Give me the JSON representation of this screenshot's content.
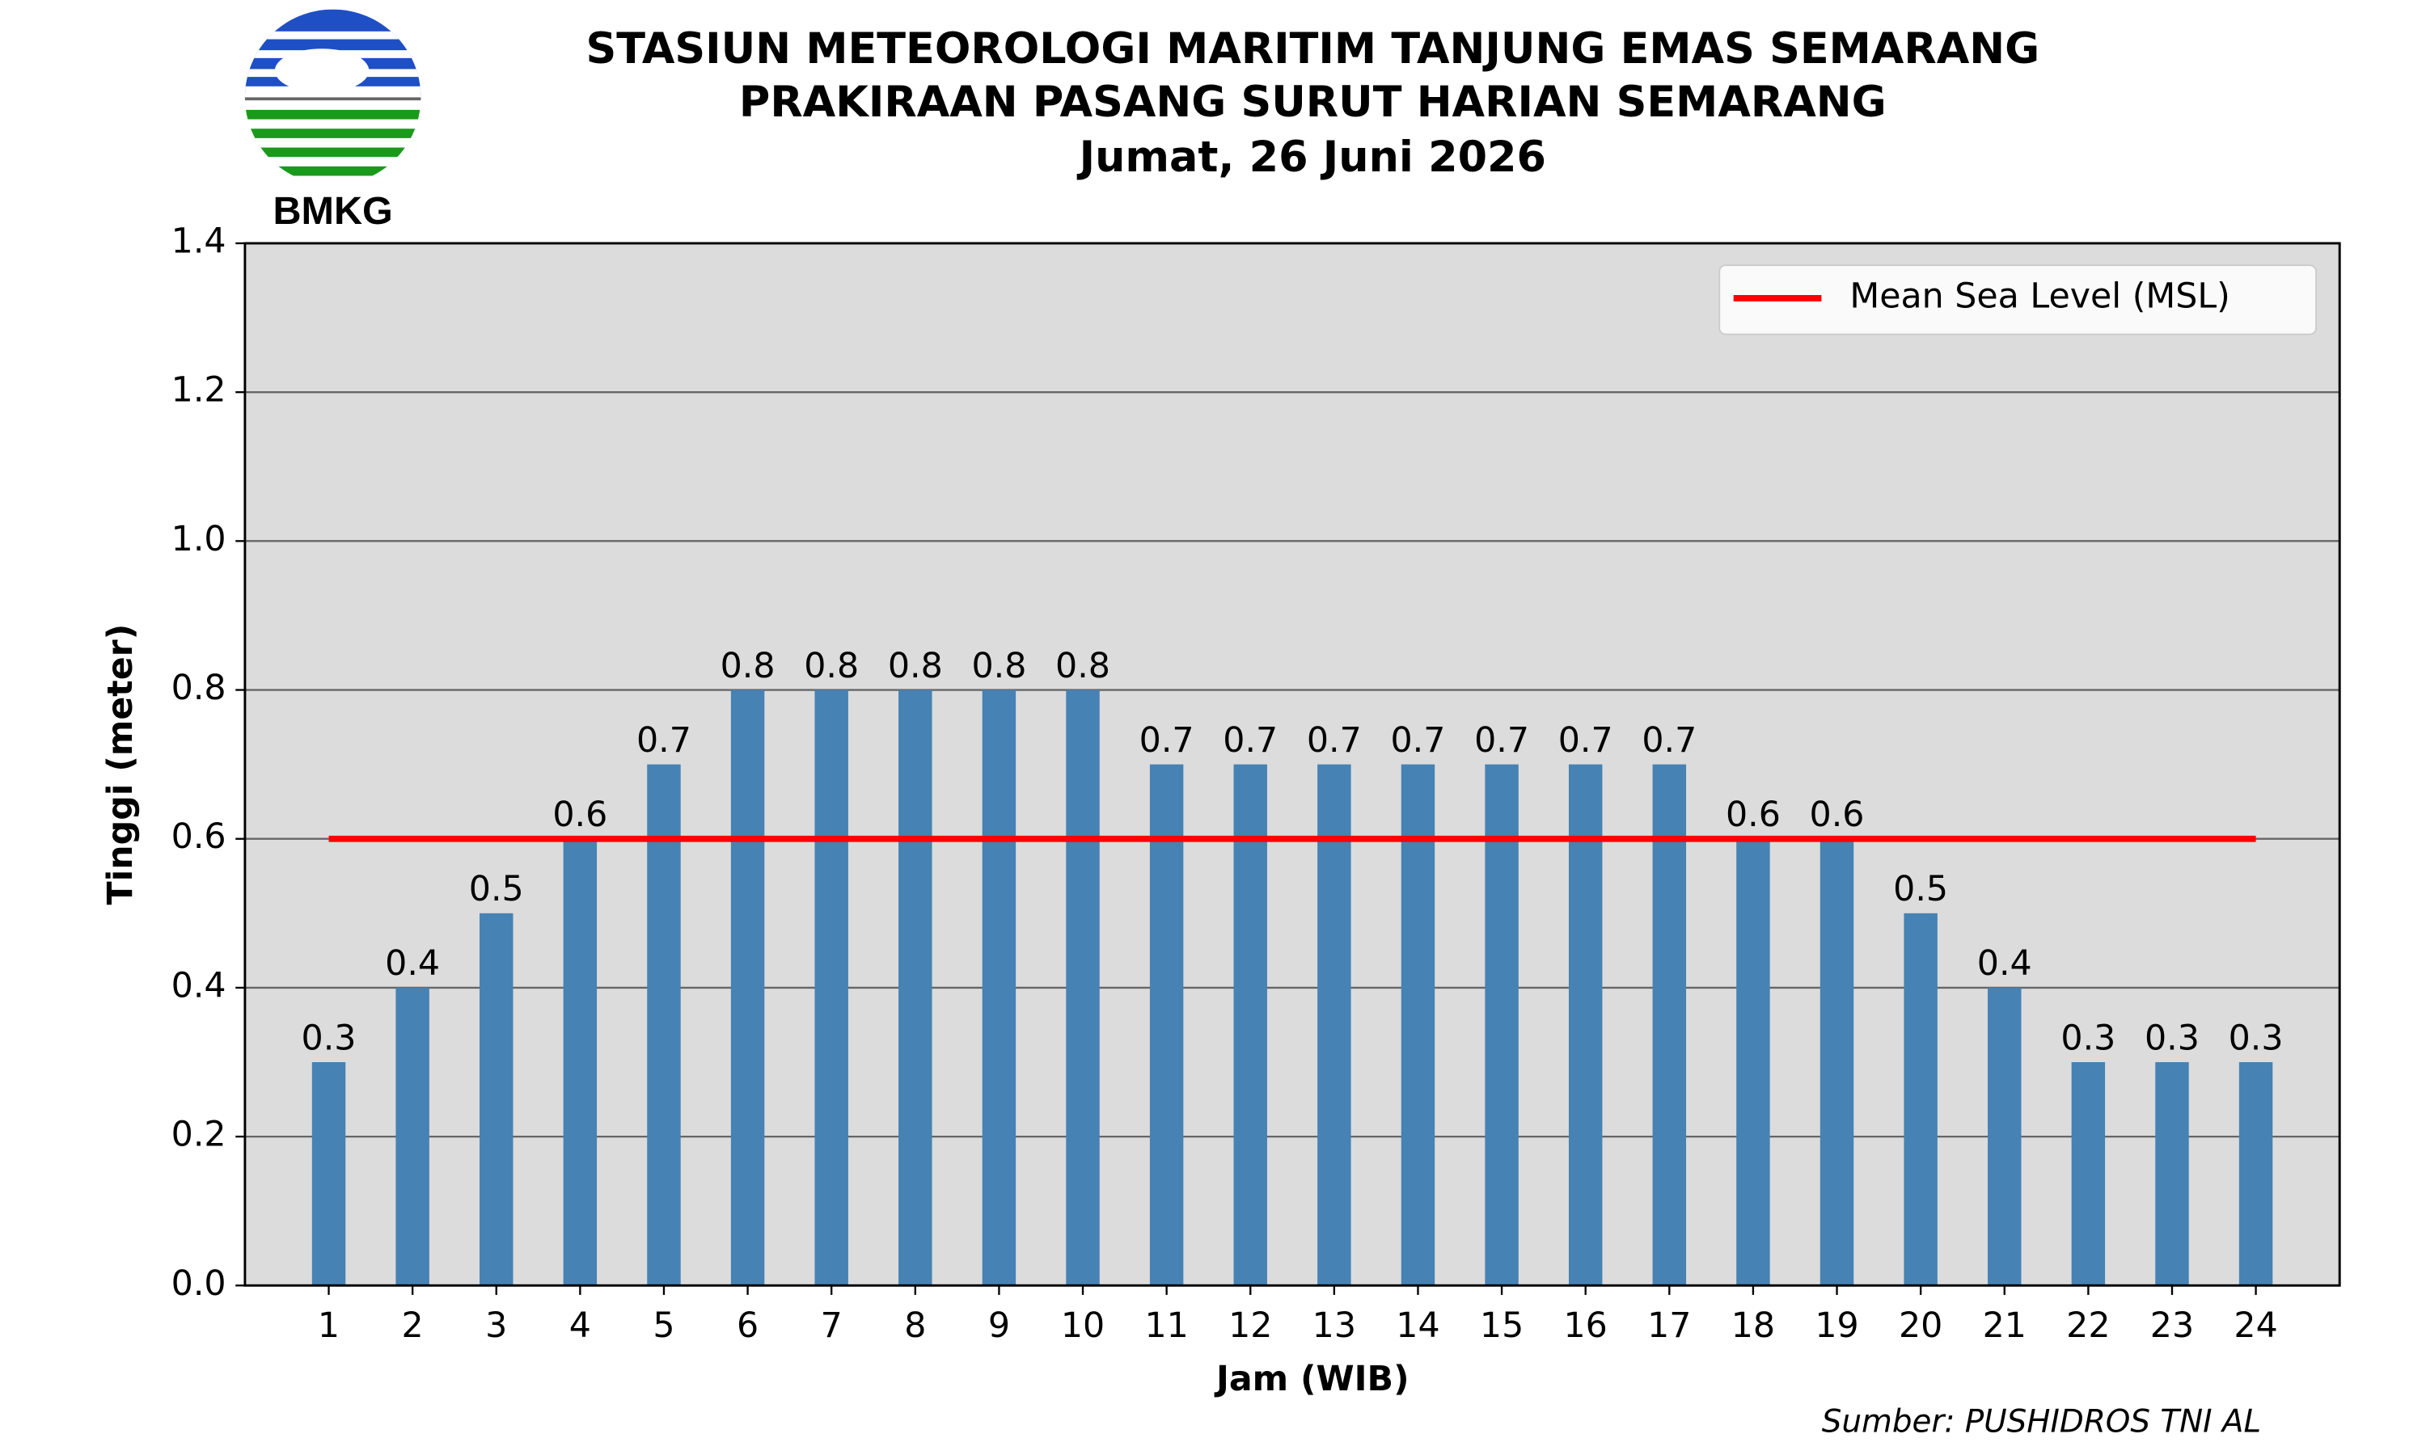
{
  "chart_data": {
    "type": "bar",
    "title": [
      "STASIUN METEOROLOGI MARITIM TANJUNG EMAS SEMARANG",
      "PRAKIRAAN PASANG SURUT HARIAN SEMARANG",
      "Jumat, 26 Juni 2026"
    ],
    "logo_text": "BMKG",
    "x_label": "Jam (WIB)",
    "y_label": "Tinggi (meter)",
    "source": "Sumber: PUSHIDROS TNI AL",
    "categories": [
      "1",
      "2",
      "3",
      "4",
      "5",
      "6",
      "7",
      "8",
      "9",
      "10",
      "11",
      "12",
      "13",
      "14",
      "15",
      "16",
      "17",
      "18",
      "19",
      "20",
      "21",
      "22",
      "23",
      "24"
    ],
    "values": [
      0.3,
      0.4,
      0.5,
      0.6,
      0.7,
      0.8,
      0.8,
      0.8,
      0.8,
      0.8,
      0.7,
      0.7,
      0.7,
      0.7,
      0.7,
      0.7,
      0.7,
      0.6,
      0.6,
      0.5,
      0.4,
      0.3,
      0.3,
      0.3
    ],
    "color": "#4682b4",
    "reference_line": {
      "name": "Mean Sea Level (MSL)",
      "value": 0.6,
      "color": "#ff0000"
    },
    "legend": "upper right",
    "ylim": [
      0,
      1.4
    ],
    "yticks": [
      {
        "value": 0,
        "label": "0.0"
      },
      0.2,
      0.4,
      0.6,
      0.8,
      {
        "value": 1,
        "label": "1.0"
      },
      1.2,
      1.4
    ],
    "grid": true
  }
}
